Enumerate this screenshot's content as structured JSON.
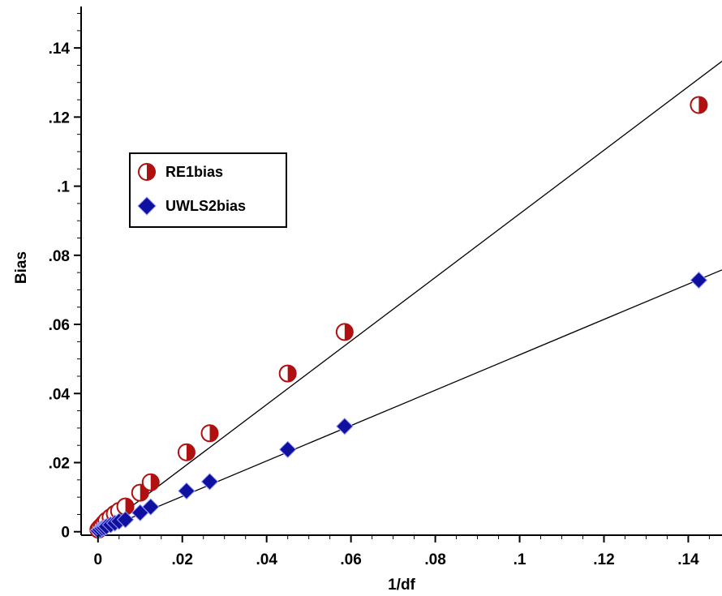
{
  "chart_data": {
    "type": "scatter",
    "xlabel": "1/df",
    "ylabel": "Bias",
    "xlim": [
      -0.004,
      0.148
    ],
    "ylim": [
      -0.001,
      0.152
    ],
    "x_ticks": [
      0,
      0.02,
      0.04,
      0.06,
      0.08,
      0.1,
      0.12,
      0.14
    ],
    "x_tick_labels": [
      "0",
      ".02",
      ".04",
      ".06",
      ".08",
      ".1",
      ".12",
      ".14"
    ],
    "y_ticks": [
      0,
      0.02,
      0.04,
      0.06,
      0.08,
      0.1,
      0.12,
      0.14
    ],
    "y_tick_labels": [
      "0",
      ".02",
      ".04",
      ".06",
      ".08",
      ".1",
      ".12",
      ".14"
    ],
    "grid": false,
    "legend_position": "top-left",
    "series": [
      {
        "name": "RE1bias",
        "marker": "half-filled-circle",
        "color": "#b01010",
        "x": [
          0.0001,
          0.0005,
          0.001,
          0.0015,
          0.002,
          0.003,
          0.004,
          0.005,
          0.0065,
          0.01,
          0.0125,
          0.021,
          0.0265,
          0.045,
          0.0585,
          0.1425
        ],
        "y": [
          0.0006,
          0.0012,
          0.0018,
          0.0025,
          0.0032,
          0.0042,
          0.0052,
          0.006,
          0.0073,
          0.0113,
          0.0143,
          0.023,
          0.0285,
          0.0458,
          0.0578,
          0.1235
        ],
        "fit_slope": 0.92
      },
      {
        "name": "UWLS2bias",
        "marker": "diamond",
        "color": "#1010a0",
        "x": [
          0.0001,
          0.0005,
          0.001,
          0.0015,
          0.002,
          0.003,
          0.004,
          0.005,
          0.0065,
          0.01,
          0.0125,
          0.021,
          0.0265,
          0.045,
          0.0585,
          0.1425
        ],
        "y": [
          0.0003,
          0.0006,
          0.001,
          0.0012,
          0.0015,
          0.002,
          0.0025,
          0.003,
          0.0035,
          0.0055,
          0.0072,
          0.0118,
          0.0145,
          0.0238,
          0.0305,
          0.0728
        ],
        "fit_slope": 0.512
      }
    ]
  }
}
